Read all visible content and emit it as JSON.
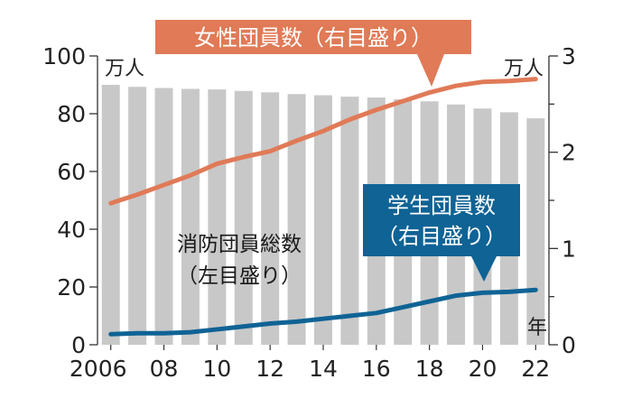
{
  "chart_data": {
    "type": "bar+line",
    "x": [
      "2006",
      "2007",
      "2008",
      "2009",
      "2010",
      "2011",
      "2012",
      "2013",
      "2014",
      "2015",
      "2016",
      "2017",
      "2018",
      "2019",
      "2020",
      "2021",
      "2022"
    ],
    "x_tick_labels": [
      "2006",
      "08",
      "10",
      "12",
      "14",
      "16",
      "18",
      "20",
      "22"
    ],
    "x_unit": "年",
    "left_axis": {
      "ticks": [
        "0",
        "20",
        "40",
        "60",
        "80",
        "100"
      ],
      "min": 0,
      "max": 100,
      "unit": "万人"
    },
    "right_axis": {
      "ticks": [
        "0",
        "1",
        "2",
        "3"
      ],
      "min": 0,
      "max": 3,
      "unit": "万人"
    },
    "bars": {
      "name_lines": [
        "消防団員総数",
        "（左目盛り）"
      ],
      "axis": "left",
      "color": "#c8c8c8",
      "values": [
        90.0,
        89.3,
        88.9,
        88.6,
        88.4,
        87.9,
        87.4,
        86.8,
        86.4,
        85.9,
        85.6,
        85.0,
        84.3,
        83.2,
        81.8,
        80.5,
        78.4
      ]
    },
    "series": [
      {
        "name_lines": [
          "女性団員数（右目盛り）"
        ],
        "axis": "right",
        "color": "#e07a57",
        "values": [
          1.47,
          1.56,
          1.66,
          1.76,
          1.88,
          1.95,
          2.01,
          2.12,
          2.22,
          2.34,
          2.44,
          2.53,
          2.62,
          2.69,
          2.73,
          2.74,
          2.76
        ]
      },
      {
        "name_lines": [
          "学生団員数",
          "（右目盛り）"
        ],
        "axis": "right",
        "color": "#0f6395",
        "values": [
          0.11,
          0.12,
          0.12,
          0.13,
          0.16,
          0.19,
          0.22,
          0.24,
          0.27,
          0.3,
          0.33,
          0.39,
          0.45,
          0.51,
          0.54,
          0.55,
          0.57
        ]
      }
    ]
  }
}
